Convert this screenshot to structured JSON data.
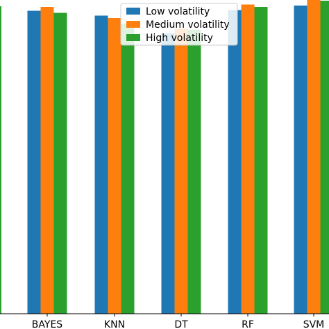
{
  "chart_data": {
    "type": "bar",
    "categories": [
      "BAYES",
      "KNN",
      "DT",
      "RF",
      "SVM"
    ],
    "series": [
      {
        "name": "Low volatility",
        "color": "#1f77b4",
        "values": [
          0.873,
          0.859,
          0.808,
          0.875,
          0.888
        ]
      },
      {
        "name": "Medium volatility",
        "color": "#ff7f0e",
        "values": [
          0.884,
          0.852,
          0.821,
          0.891,
          0.904
        ]
      },
      {
        "name": "High volatility",
        "color": "#2ca02c",
        "values": [
          0.867,
          0.836,
          0.818,
          0.884,
          0.902
        ]
      }
    ],
    "partial_left_bar": {
      "color": "#2ca02c",
      "value": 0.886
    },
    "ylim": [
      0,
      1
    ],
    "grid": false,
    "legend_position": "top-center"
  }
}
